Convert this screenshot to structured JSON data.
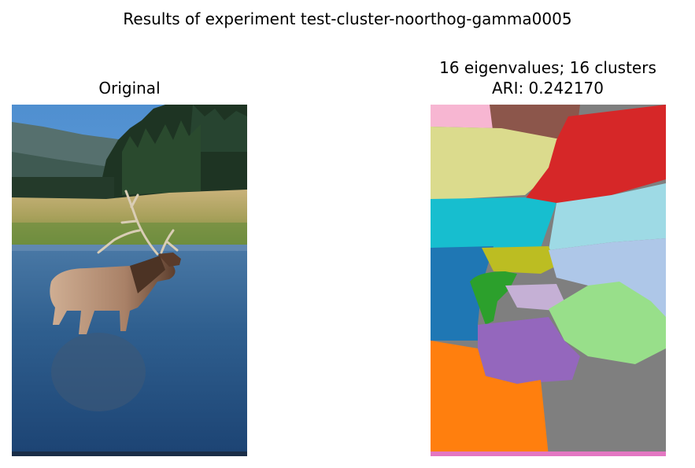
{
  "figure": {
    "suptitle": "Results of experiment test-cluster-noorthog-gamma0005"
  },
  "panels": {
    "original": {
      "title": "Original"
    },
    "segmentation": {
      "title_line1": "16 eigenvalues; 16 clusters",
      "title_line2": "ARI: 0.242170",
      "palette": [
        "#1f77b4",
        "#aec7e8",
        "#ff7f0e",
        "#2ca02c",
        "#98df8a",
        "#d62728",
        "#9467bd",
        "#c5b0d5",
        "#8c564b",
        "#e377c2",
        "#f7b6d2",
        "#7f7f7f",
        "#bcbd22",
        "#dbdb8d",
        "#17becf",
        "#9edae5"
      ]
    }
  }
}
